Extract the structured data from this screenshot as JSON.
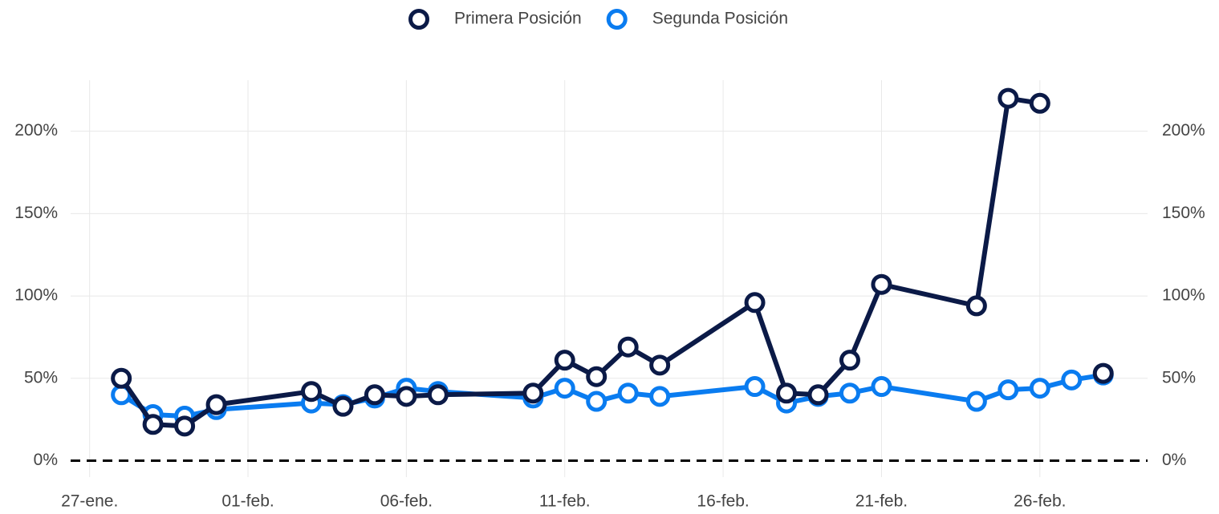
{
  "chart_data": {
    "type": "line",
    "x": [
      1,
      2,
      3,
      4,
      7,
      8,
      9,
      10,
      11,
      14,
      15,
      16,
      17,
      18,
      21,
      22,
      23,
      24,
      25,
      28,
      29,
      30,
      31,
      32
    ],
    "xlim": [
      -0.6,
      33.4
    ],
    "xticks": [
      {
        "value": 0,
        "label": "27-ene."
      },
      {
        "value": 5,
        "label": "01-feb."
      },
      {
        "value": 10,
        "label": "06-feb."
      },
      {
        "value": 15,
        "label": "11-feb."
      },
      {
        "value": 20,
        "label": "16-feb."
      },
      {
        "value": 25,
        "label": "21-feb."
      },
      {
        "value": 30,
        "label": "26-feb."
      }
    ],
    "ylim": [
      -10,
      231
    ],
    "yticks": [
      {
        "value": 0,
        "label": "0%"
      },
      {
        "value": 50,
        "label": "50%"
      },
      {
        "value": 100,
        "label": "100%"
      },
      {
        "value": 150,
        "label": "150%"
      },
      {
        "value": 200,
        "label": "200%"
      }
    ],
    "y2lim": [
      -10,
      231
    ],
    "grid": true,
    "legend": "top",
    "series": [
      {
        "name": "Segunda Posición",
        "color": "#0a7cf0",
        "values": [
          40,
          28,
          27,
          31,
          35,
          34,
          38,
          44,
          42,
          38,
          44,
          36,
          41,
          39,
          45,
          35,
          39,
          41,
          45,
          36,
          43,
          44,
          49,
          52
        ]
      },
      {
        "name": "Primera Posición",
        "color": "#0b1a47",
        "values": [
          50,
          22,
          21,
          34,
          42,
          33,
          40,
          39,
          40,
          41,
          61,
          51,
          69,
          58,
          96,
          41,
          40,
          61,
          107,
          94,
          220,
          217,
          null,
          53
        ]
      }
    ]
  }
}
